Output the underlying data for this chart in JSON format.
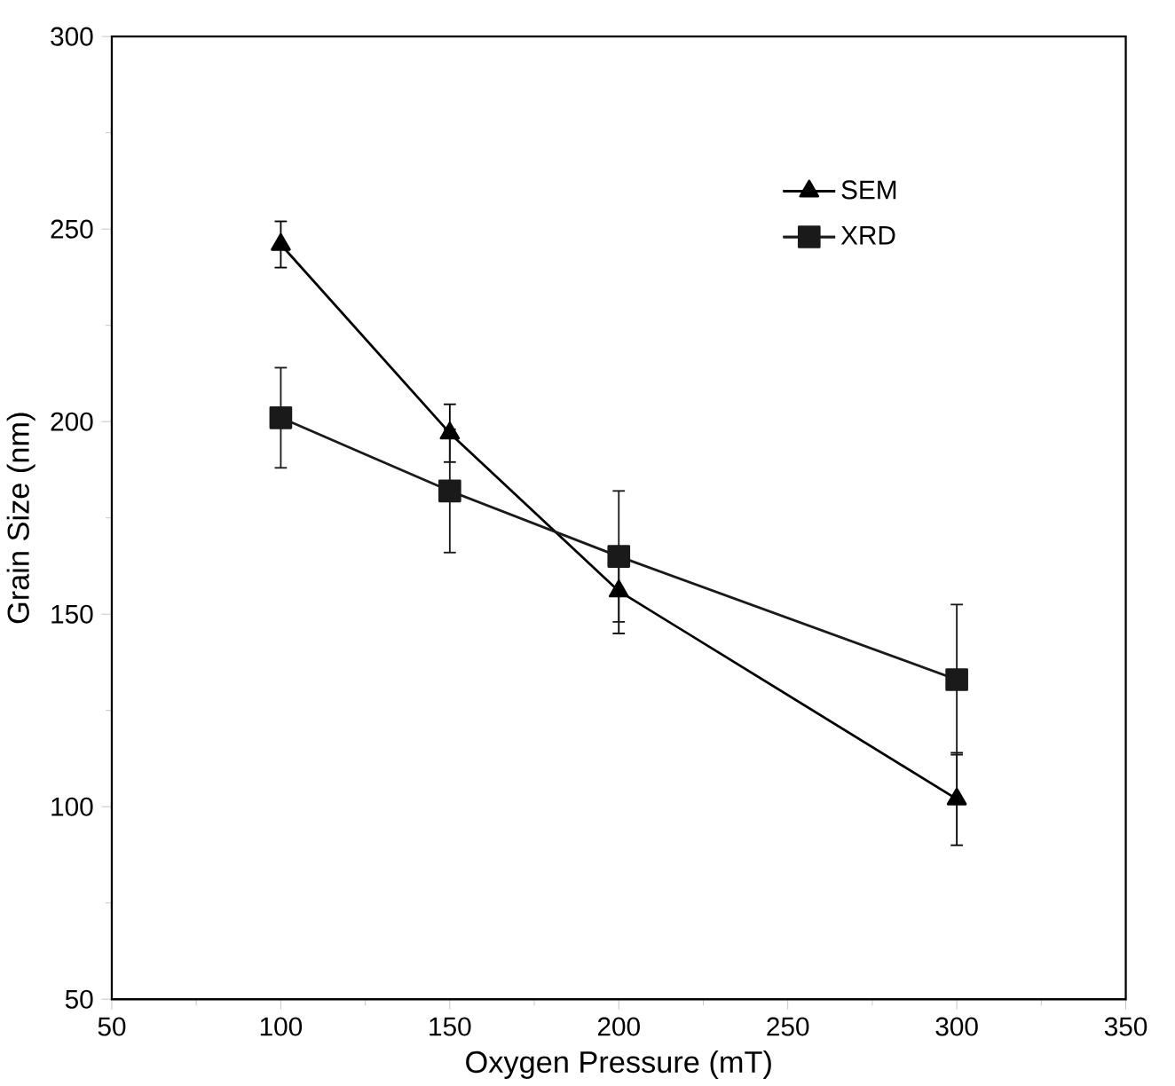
{
  "chart_data": {
    "type": "line",
    "xlabel": "Oxygen Pressure (mT)",
    "ylabel": "Grain Size (nm)",
    "x": [
      100,
      150,
      200,
      300
    ],
    "series": [
      {
        "name": "SEM",
        "color": "#000000",
        "marker": "triangle",
        "values": [
          246,
          197,
          156,
          102
        ],
        "errors": [
          6,
          7.5,
          11,
          12
        ]
      },
      {
        "name": "XRD",
        "color": "#1a1a1a",
        "marker": "square",
        "values": [
          201,
          182,
          165,
          133
        ],
        "errors": [
          13,
          16,
          17,
          19.5
        ]
      }
    ],
    "xlim": [
      50,
      350
    ],
    "xticks": [
      50,
      100,
      150,
      200,
      250,
      300,
      350
    ],
    "ylim": [
      50,
      300
    ],
    "yticks": [
      50,
      100,
      150,
      200,
      250,
      300
    ],
    "grid": false,
    "legend": "top right",
    "line_style": "solid"
  }
}
